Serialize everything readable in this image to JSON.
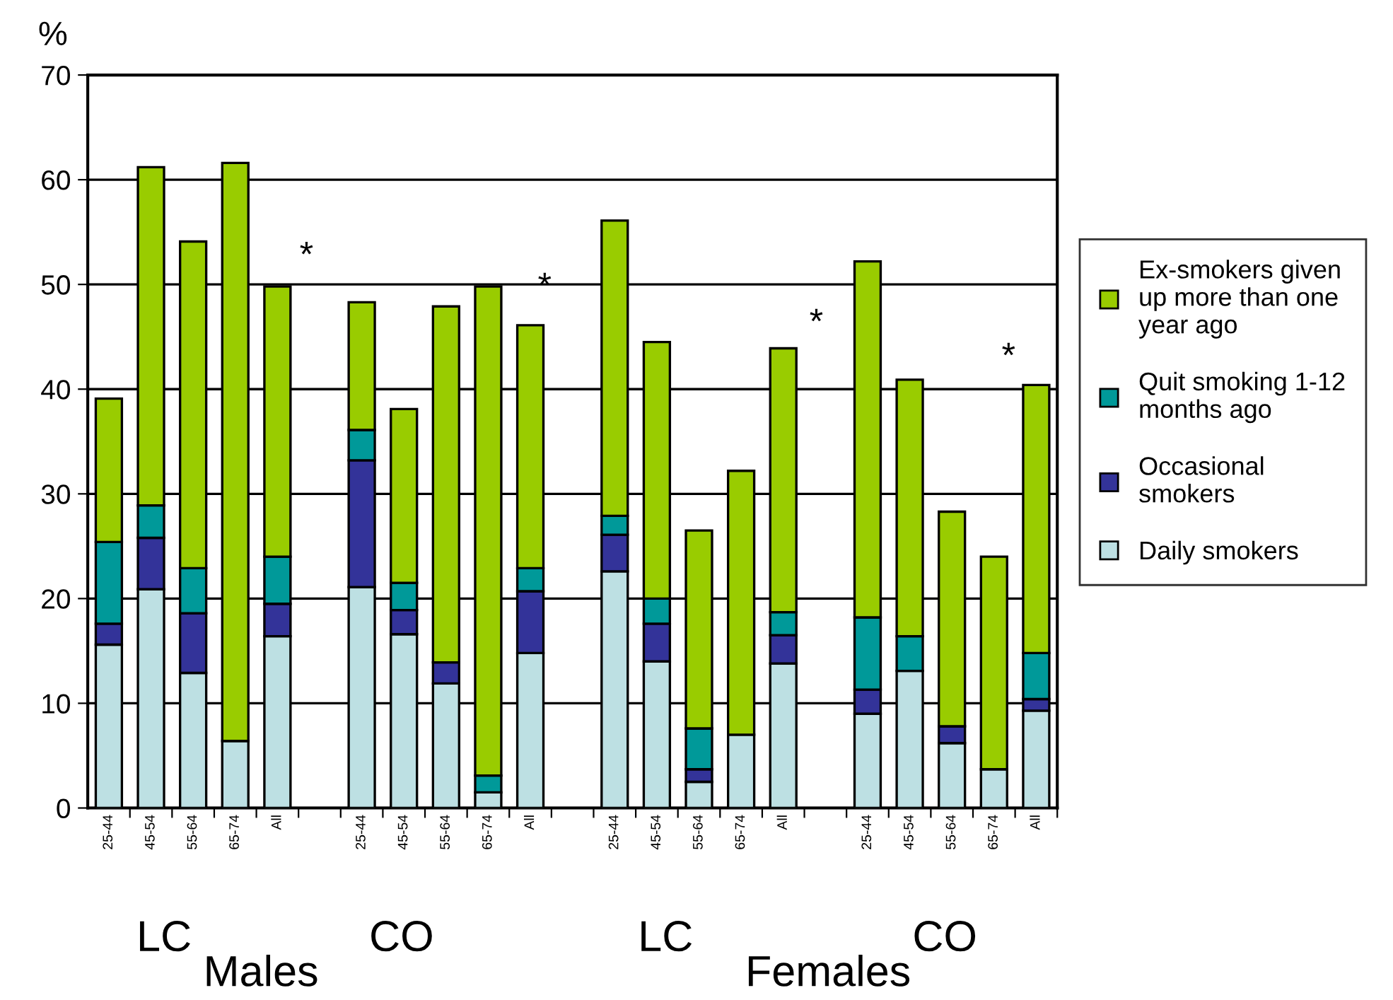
{
  "chart_data": {
    "type": "bar",
    "stacked": true,
    "ylabel": "%",
    "categories": [
      "25-44",
      "45-54",
      "55-64",
      "65-74",
      "All",
      null,
      "25-44",
      "45-54",
      "55-64",
      "65-74",
      "All",
      null,
      "25-44",
      "45-54",
      "55-64",
      "65-74",
      "All",
      null,
      "25-44",
      "45-54",
      "55-64",
      "65-74",
      "All"
    ],
    "series": [
      {
        "name": "Daily smokers",
        "color": "#bde0e3",
        "values": [
          15.6,
          20.9,
          12.9,
          6.4,
          16.4,
          null,
          21.1,
          16.6,
          11.9,
          1.5,
          14.8,
          null,
          22.6,
          14.0,
          2.5,
          7.0,
          13.8,
          null,
          9.0,
          13.1,
          6.2,
          3.7,
          9.3
        ]
      },
      {
        "name": "Occasional\nsmokers",
        "color": "#333399",
        "values": [
          2.0,
          4.9,
          5.7,
          null,
          3.1,
          null,
          12.1,
          2.3,
          2.0,
          null,
          5.9,
          null,
          3.5,
          3.6,
          1.2,
          null,
          2.7,
          null,
          2.3,
          null,
          1.6,
          null,
          1.1
        ]
      },
      {
        "name": "Quit smoking 1-12\nmonths ago",
        "color": "#009999",
        "values": [
          7.8,
          3.1,
          4.3,
          null,
          4.5,
          null,
          2.9,
          2.6,
          null,
          1.6,
          2.2,
          null,
          1.8,
          2.4,
          3.9,
          null,
          2.2,
          null,
          6.9,
          3.3,
          null,
          null,
          4.4
        ]
      },
      {
        "name": "Ex-smokers given\nup more than one\nyear ago",
        "color": "#99cc00",
        "values": [
          13.7,
          32.3,
          31.2,
          55.2,
          25.8,
          null,
          12.2,
          16.6,
          34.0,
          46.7,
          23.2,
          null,
          28.2,
          24.5,
          18.9,
          25.2,
          25.2,
          null,
          34.0,
          24.5,
          20.5,
          20.3,
          25.6
        ]
      }
    ],
    "ylim": [
      0,
      70
    ],
    "yticks": [
      0,
      10,
      20,
      30,
      40,
      50,
      60,
      70
    ],
    "grid": "y",
    "legend": "right",
    "annotations": [
      "*",
      "*",
      "*",
      "*",
      "LC",
      "Males",
      "CO",
      "LC",
      "Females",
      "CO"
    ]
  }
}
